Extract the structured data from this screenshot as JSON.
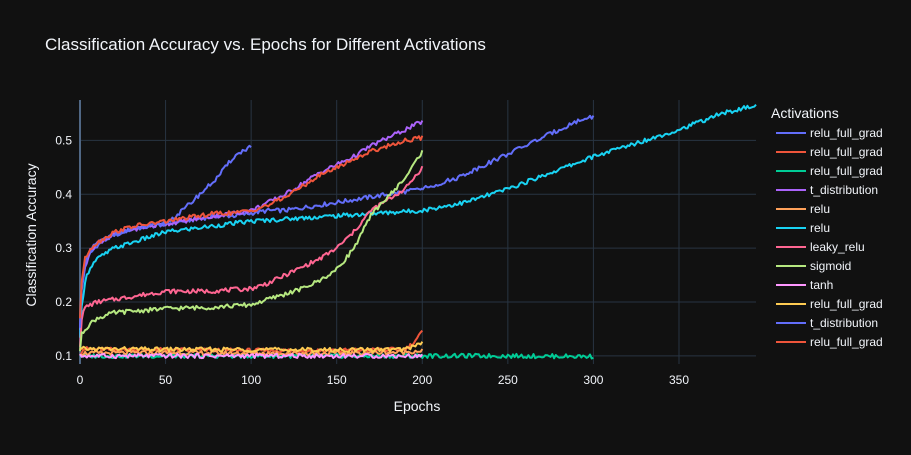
{
  "chart_data": {
    "type": "line",
    "title": "Classification Accuracy vs. Epochs for Different Activations",
    "xlabel": "Epochs",
    "ylabel": "Classification Accuracy",
    "xlim": [
      0,
      395
    ],
    "ylim": [
      0.085,
      0.575
    ],
    "x_ticks": [
      0,
      50,
      100,
      150,
      200,
      250,
      300,
      350
    ],
    "y_ticks": [
      0.1,
      0.2,
      0.3,
      0.4,
      0.5
    ],
    "grid": true,
    "legend_title": "Activations",
    "legend_position": "right",
    "series": [
      {
        "name": "relu_full_grad",
        "color": "#636efa",
        "x": [
          0,
          1,
          3,
          6,
          10,
          20,
          30,
          40,
          50,
          60,
          70,
          80,
          90,
          100,
          110,
          120,
          130,
          140,
          150,
          160,
          170,
          180,
          190,
          200
        ],
        "y": [
          0.14,
          0.22,
          0.265,
          0.29,
          0.305,
          0.325,
          0.335,
          0.34,
          0.345,
          0.35,
          0.355,
          0.36,
          0.36,
          0.365,
          0.37,
          0.37,
          0.375,
          0.38,
          0.385,
          0.39,
          0.395,
          0.4,
          0.405,
          0.41
        ]
      },
      {
        "name": "relu_full_grad",
        "color": "#ef553b",
        "x": [
          0,
          2,
          10,
          50,
          100,
          150,
          190,
          195,
          200
        ],
        "y": [
          0.105,
          0.113,
          0.112,
          0.111,
          0.11,
          0.11,
          0.112,
          0.125,
          0.145
        ]
      },
      {
        "name": "relu_full_grad",
        "color": "#00cc96",
        "x": [
          0,
          50,
          100,
          150,
          200,
          250,
          300
        ],
        "y": [
          0.1,
          0.1,
          0.1,
          0.1,
          0.1,
          0.1,
          0.099
        ]
      },
      {
        "name": "t_distribution",
        "color": "#ab63fa",
        "x": [
          0,
          1,
          3,
          6,
          10,
          20,
          30,
          40,
          50,
          60,
          70,
          80,
          90,
          100,
          110,
          120,
          130,
          140,
          150,
          160,
          170,
          180,
          190,
          200
        ],
        "y": [
          0.15,
          0.23,
          0.27,
          0.295,
          0.31,
          0.325,
          0.335,
          0.34,
          0.345,
          0.35,
          0.355,
          0.36,
          0.365,
          0.37,
          0.385,
          0.4,
          0.42,
          0.44,
          0.455,
          0.47,
          0.49,
          0.505,
          0.52,
          0.535
        ]
      },
      {
        "name": "relu",
        "color": "#ffa15a",
        "x": [
          0,
          50,
          100,
          150,
          190,
          200
        ],
        "y": [
          0.105,
          0.106,
          0.105,
          0.105,
          0.107,
          0.11
        ]
      },
      {
        "name": "relu",
        "color": "#19d3f3",
        "x": [
          0,
          1,
          3,
          6,
          10,
          20,
          30,
          40,
          50,
          75,
          100,
          125,
          150,
          175,
          200,
          225,
          250,
          275,
          300,
          325,
          350,
          375,
          395
        ],
        "y": [
          0.13,
          0.19,
          0.24,
          0.265,
          0.28,
          0.3,
          0.31,
          0.32,
          0.33,
          0.34,
          0.35,
          0.355,
          0.36,
          0.365,
          0.37,
          0.385,
          0.41,
          0.44,
          0.47,
          0.495,
          0.52,
          0.55,
          0.565
        ]
      },
      {
        "name": "leaky_relu",
        "color": "#ff6692",
        "x": [
          0,
          1,
          3,
          6,
          10,
          20,
          30,
          40,
          50,
          75,
          100,
          110,
          120,
          130,
          140,
          150,
          160,
          170,
          180,
          190,
          200
        ],
        "y": [
          0.12,
          0.17,
          0.19,
          0.195,
          0.2,
          0.205,
          0.21,
          0.215,
          0.22,
          0.22,
          0.225,
          0.235,
          0.25,
          0.265,
          0.28,
          0.3,
          0.33,
          0.37,
          0.39,
          0.41,
          0.45
        ]
      },
      {
        "name": "sigmoid",
        "color": "#b6e880",
        "x": [
          0,
          1,
          3,
          6,
          10,
          20,
          30,
          40,
          50,
          75,
          100,
          110,
          120,
          130,
          140,
          150,
          160,
          165,
          170,
          175,
          180,
          190,
          200
        ],
        "y": [
          0.11,
          0.14,
          0.15,
          0.16,
          0.17,
          0.18,
          0.183,
          0.185,
          0.188,
          0.19,
          0.195,
          0.205,
          0.215,
          0.225,
          0.24,
          0.26,
          0.3,
          0.33,
          0.36,
          0.38,
          0.395,
          0.43,
          0.48
        ]
      },
      {
        "name": "tanh",
        "color": "#ff97ff",
        "x": [
          0,
          50,
          100,
          150,
          200
        ],
        "y": [
          0.1,
          0.1,
          0.1,
          0.1,
          0.1
        ]
      },
      {
        "name": "relu_full_grad",
        "color": "#fecb52",
        "x": [
          0,
          2,
          10,
          50,
          100,
          150,
          190,
          200
        ],
        "y": [
          0.11,
          0.113,
          0.113,
          0.112,
          0.112,
          0.111,
          0.112,
          0.125
        ]
      },
      {
        "name": "t_distribution",
        "color": "#636efa",
        "x": [
          0,
          1,
          3,
          6,
          10,
          20,
          30,
          40,
          50,
          60,
          70,
          80,
          90,
          100
        ],
        "y": [
          0.15,
          0.235,
          0.27,
          0.295,
          0.31,
          0.325,
          0.335,
          0.34,
          0.345,
          0.37,
          0.4,
          0.43,
          0.47,
          0.49
        ]
      },
      {
        "name": "relu_full_grad",
        "color": "#ef553b",
        "x": [
          0,
          1,
          3,
          6,
          10,
          20,
          30,
          40,
          50,
          60,
          70,
          80,
          90,
          100,
          110,
          120,
          130,
          140,
          150,
          160,
          170,
          180,
          190,
          200
        ],
        "y": [
          0.17,
          0.24,
          0.28,
          0.3,
          0.31,
          0.33,
          0.34,
          0.345,
          0.35,
          0.355,
          0.36,
          0.365,
          0.365,
          0.37,
          0.38,
          0.395,
          0.415,
          0.435,
          0.45,
          0.465,
          0.48,
          0.49,
          0.5,
          0.505
        ]
      },
      {
        "name": "relu_full_grad",
        "color": "#636efa",
        "x": [
          200,
          210,
          220,
          230,
          240,
          250,
          260,
          270,
          280,
          290,
          300
        ],
        "y": [
          0.41,
          0.42,
          0.43,
          0.445,
          0.46,
          0.475,
          0.49,
          0.505,
          0.52,
          0.535,
          0.545
        ]
      }
    ]
  }
}
